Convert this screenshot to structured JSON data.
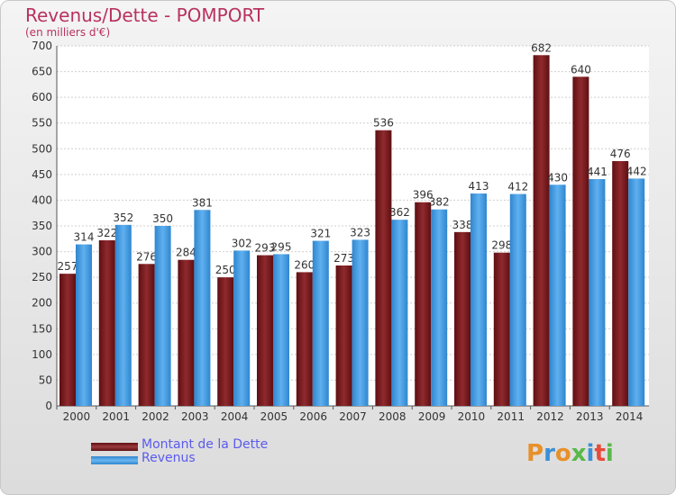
{
  "chart_data": {
    "type": "bar",
    "title": "Revenus/Dette - POMPORT",
    "subtitle": "(en milliers d'€)",
    "categories": [
      "2000",
      "2001",
      "2002",
      "2003",
      "2004",
      "2005",
      "2006",
      "2007",
      "2008",
      "2009",
      "2010",
      "2011",
      "2012",
      "2013",
      "2014"
    ],
    "series": [
      {
        "name": "Montant de la Dette",
        "color": "#7a1a1e",
        "values": [
          257,
          322,
          276,
          284,
          250,
          293,
          260,
          273,
          536,
          396,
          338,
          298,
          682,
          640,
          476
        ]
      },
      {
        "name": "Revenus",
        "color": "#3d9ae2",
        "values": [
          314,
          352,
          350,
          381,
          302,
          295,
          321,
          323,
          362,
          382,
          413,
          412,
          430,
          441,
          442
        ]
      }
    ],
    "ylim": [
      0,
      700
    ],
    "yticks": [
      0,
      50,
      100,
      150,
      200,
      250,
      300,
      350,
      400,
      450,
      500,
      550,
      600,
      650,
      700
    ],
    "grid": true,
    "legend_position": "bottom-left"
  },
  "logo": {
    "text": "Proxiti",
    "colors": [
      "#e8902a",
      "#3b8fd8",
      "#e8902a",
      "#5ab84a",
      "#3b8fd8",
      "#e84a3a",
      "#5ab84a"
    ]
  }
}
